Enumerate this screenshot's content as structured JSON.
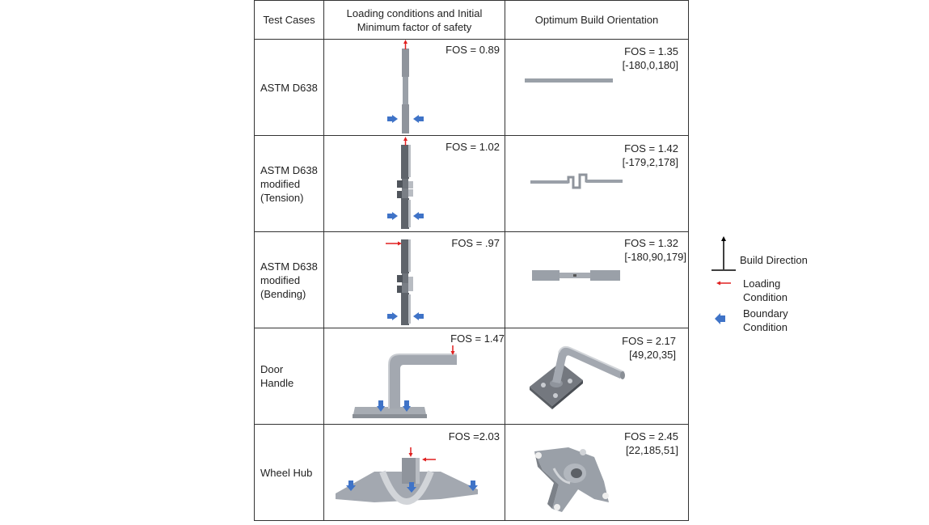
{
  "header": {
    "col1": "Test Cases",
    "col2_line1": "Loading conditions and Initial",
    "col2_line2": "Minimum factor of safety",
    "col3": "Optimum Build Orientation"
  },
  "rows": [
    {
      "case_lines": [
        "ASTM D638"
      ],
      "initial_fos": "FOS = 0.89",
      "optimum_fos": "FOS = 1.35",
      "orientation": "[-180,0,180]"
    },
    {
      "case_lines": [
        "ASTM D638",
        "modified",
        "(Tension)"
      ],
      "initial_fos": "FOS = 1.02",
      "optimum_fos": "FOS = 1.42",
      "orientation": "[-179,2,178]"
    },
    {
      "case_lines": [
        "ASTM D638",
        "modified",
        "(Bending)"
      ],
      "initial_fos": "FOS = .97",
      "optimum_fos": "FOS = 1.32",
      "orientation": "[-180,90,179]"
    },
    {
      "case_lines": [
        "Door",
        "Handle"
      ],
      "initial_fos": "FOS = 1.47",
      "optimum_fos": "FOS = 2.17",
      "orientation": "[49,20,35]"
    },
    {
      "case_lines": [
        "Wheel Hub"
      ],
      "initial_fos": "FOS =2.03",
      "optimum_fos": "FOS = 2.45",
      "orientation": "[22,185,51]"
    }
  ],
  "legend": {
    "build_direction": "Build Direction",
    "loading_line1": "Loading",
    "loading_line2": "Condition",
    "boundary_line1": "Boundary",
    "boundary_line2": "Condition"
  },
  "colors": {
    "load_arrow": "#e02020",
    "boundary_arrow": "#3f73c7",
    "part": "#9a9ea6"
  }
}
